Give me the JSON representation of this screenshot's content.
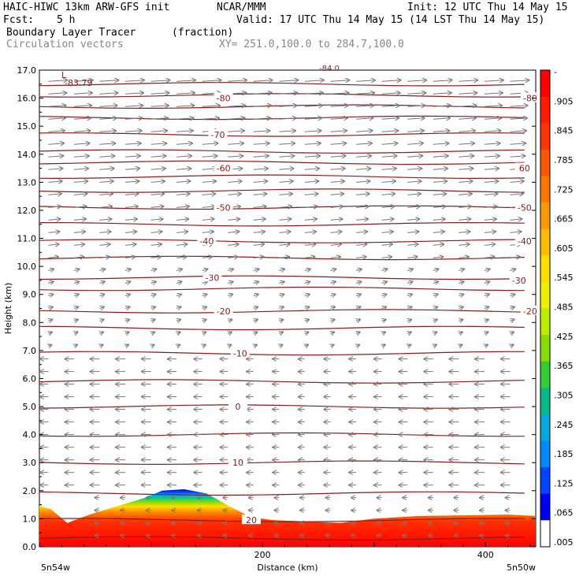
{
  "header": {
    "model_line": "HAIC-HIWC 13km ARW-GFS init",
    "org": "NCAR/MMM",
    "init": "Init: 12 UTC Thu 14 May 15",
    "fcst_label": "Fcst:",
    "fcst_value": "5 h",
    "valid": "Valid: 17 UTC Thu 14 May 15 (14 LST Thu 14 May 15)",
    "field1_name": "Boundary Layer Tracer",
    "field1_units": "(fraction)",
    "field2_name": "Circulation vectors",
    "xy_range": "XY= 251.0,100.0 to 284.7,100.0"
  },
  "chart_data": {
    "type": "cross-section",
    "ylabel": "Height (km)",
    "xlabel": "Distance (km)",
    "yticks": [
      "0.0",
      "1.0",
      "2.0",
      "3.0",
      "4.0",
      "5.0",
      "6.0",
      "7.0",
      "8.0",
      "9.0",
      "10.0",
      "11.0",
      "12.0",
      "13.0",
      "14.0",
      "15.0",
      "16.0",
      "17.0"
    ],
    "ylim": [
      0,
      17
    ],
    "xlim": [
      0,
      445
    ],
    "xticks": [
      "200",
      "400"
    ],
    "xtick_values": [
      200,
      400
    ],
    "left_end_label": "5n54w",
    "right_end_label": "5n50w",
    "colorbar_labels": [
      "-",
      ".905",
      ".845",
      ".785",
      ".725",
      ".665",
      ".605",
      ".545",
      ".485",
      ".425",
      ".365",
      ".305",
      ".245",
      ".185",
      ".125",
      ".065",
      ".005"
    ],
    "colorbar_colors": [
      "#ff0000",
      "#ff1a00",
      "#ff3300",
      "#ff5500",
      "#ff7700",
      "#ff9900",
      "#ffbb00",
      "#ffdd00",
      "#eeee00",
      "#bbee00",
      "#88dd00",
      "#33cc33",
      "#00bb88",
      "#00aadd",
      "#0088ff",
      "#0044ff",
      "#0000ee",
      "#ffffff"
    ],
    "isotherm_labels": [
      {
        "label": "-80",
        "x": 165,
        "y": 16.0
      },
      {
        "label": "-80",
        "x": 440,
        "y": 16.0
      },
      {
        "label": "-70",
        "x": 160,
        "y": 14.7
      },
      {
        "label": "-60",
        "x": 165,
        "y": 13.5
      },
      {
        "label": "60",
        "x": 435,
        "y": 13.5
      },
      {
        "label": "-50",
        "x": 165,
        "y": 12.1
      },
      {
        "label": "-50",
        "x": 435,
        "y": 12.1
      },
      {
        "label": "-40",
        "x": 150,
        "y": 10.9
      },
      {
        "label": "-40",
        "x": 435,
        "y": 10.9
      },
      {
        "label": "-30",
        "x": 155,
        "y": 9.6
      },
      {
        "label": "-30",
        "x": 430,
        "y": 9.5
      },
      {
        "label": "-20",
        "x": 165,
        "y": 8.4
      },
      {
        "label": "-20",
        "x": 440,
        "y": 8.4
      },
      {
        "label": "-10",
        "x": 180,
        "y": 6.9
      },
      {
        "label": "0",
        "x": 178,
        "y": 5.0
      },
      {
        "label": "10",
        "x": 178,
        "y": 3.0
      },
      {
        "label": "20",
        "x": 190,
        "y": 0.95
      }
    ],
    "isotherm_levels_km": [
      0.3,
      0.95,
      1.9,
      3.0,
      4.0,
      5.0,
      5.9,
      6.9,
      7.8,
      8.4,
      9.2,
      9.6,
      10.3,
      10.9,
      11.5,
      12.1,
      12.7,
      13.2,
      13.7,
      14.1,
      14.7,
      15.3,
      15.7,
      16.1,
      16.5
    ],
    "tracer_top_km": [
      [
        0,
        1.45
      ],
      [
        10,
        1.35
      ],
      [
        25,
        0.85
      ],
      [
        45,
        1.15
      ],
      [
        70,
        1.45
      ],
      [
        95,
        1.75
      ],
      [
        110,
        2.0
      ],
      [
        130,
        2.05
      ],
      [
        150,
        1.9
      ],
      [
        170,
        1.45
      ],
      [
        190,
        1.05
      ],
      [
        210,
        0.95
      ],
      [
        240,
        0.9
      ],
      [
        270,
        0.85
      ],
      [
        300,
        1.0
      ],
      [
        340,
        1.1
      ],
      [
        380,
        1.12
      ],
      [
        420,
        1.15
      ],
      [
        445,
        1.1
      ]
    ],
    "min_label": "-83.79",
    "max_label_top": "-84.0",
    "low_marker": "L"
  }
}
